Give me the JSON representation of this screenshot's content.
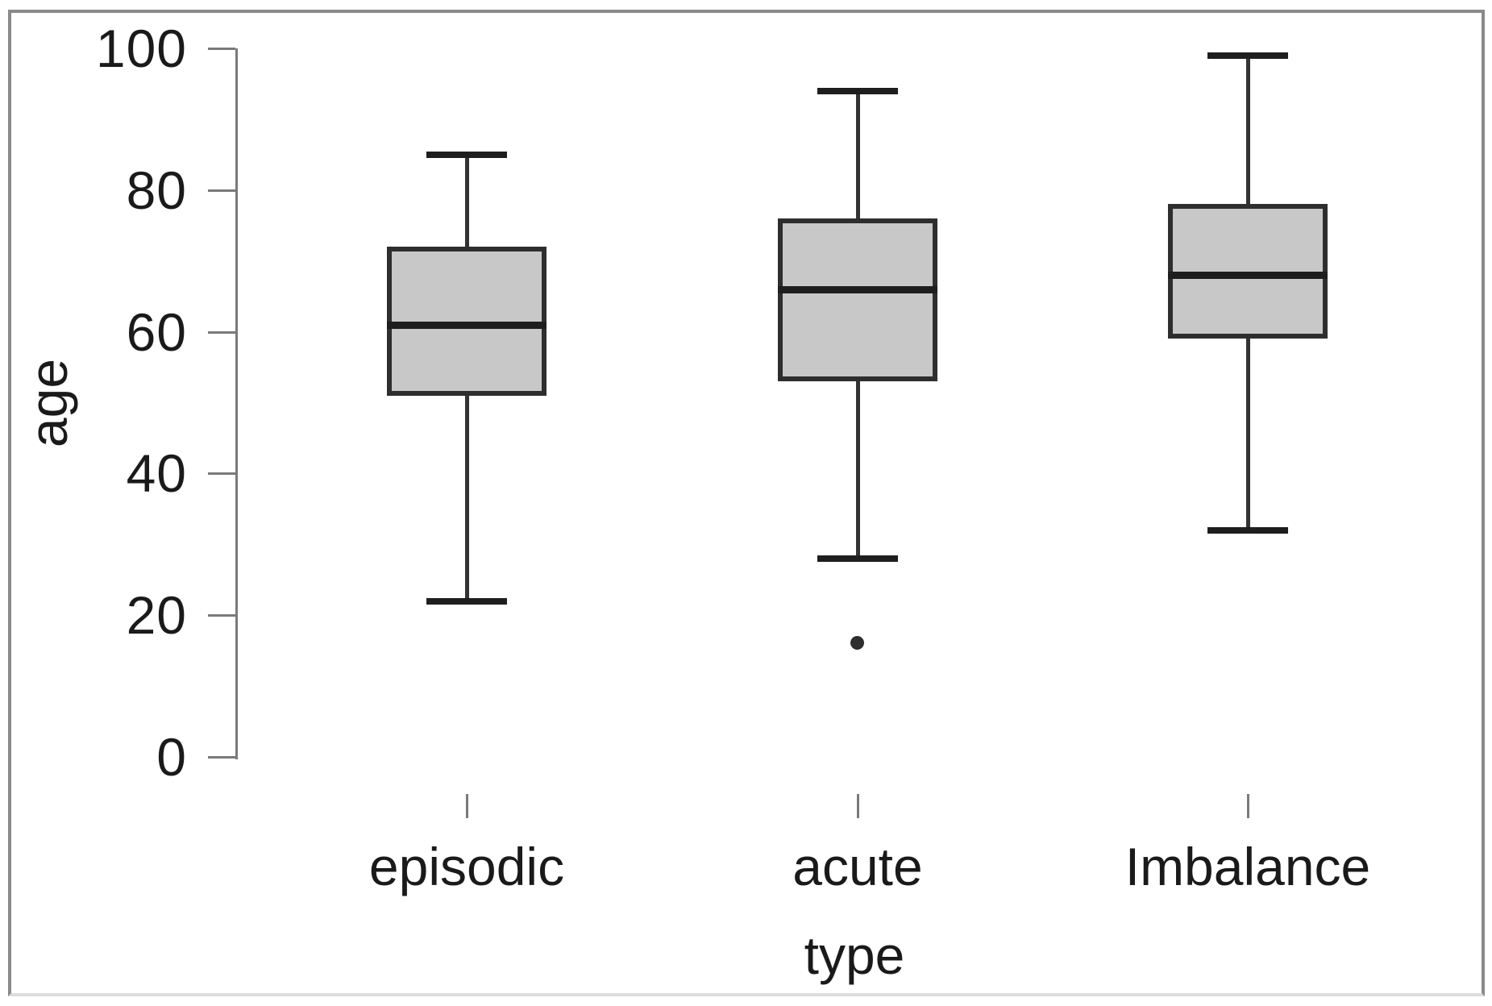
{
  "chart_data": {
    "type": "box",
    "title": "",
    "xlabel": "type",
    "ylabel": "age",
    "ylim": [
      0,
      100
    ],
    "yticks": [
      0,
      20,
      40,
      60,
      80,
      100
    ],
    "grid": false,
    "legend": null,
    "categories": [
      "episodic",
      "acute",
      "Imbalance"
    ],
    "series": [
      {
        "name": "episodic",
        "whisker_low": 22,
        "q1": 51,
        "median": 61,
        "q3": 72,
        "whisker_high": 85,
        "outliers": []
      },
      {
        "name": "acute",
        "whisker_low": 28,
        "q1": 53,
        "median": 66,
        "q3": 76,
        "whisker_high": 94,
        "outliers": [
          16
        ]
      },
      {
        "name": "Imbalance",
        "whisker_low": 32,
        "q1": 59,
        "median": 68,
        "q3": 78,
        "whisker_high": 99,
        "outliers": []
      }
    ]
  },
  "colors": {
    "box_fill": "#c8c8c8",
    "box_border": "#2e2e2e",
    "median": "#1e1e1e",
    "whisker": "#333333",
    "axis": "#7a7a7a",
    "text": "#1a1a1a",
    "frame": "#8a8a8a",
    "background": "#ffffff"
  }
}
